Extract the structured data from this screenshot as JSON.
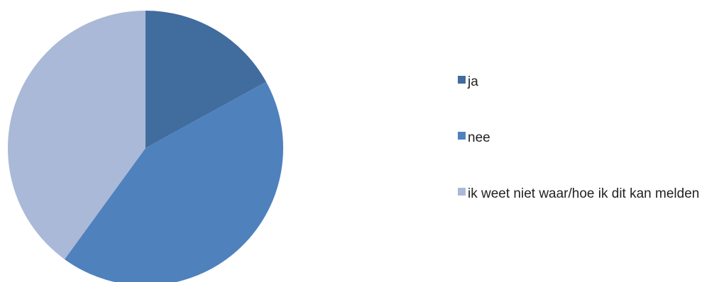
{
  "chart_data": {
    "type": "pie",
    "title": "",
    "start_angle_deg": 0,
    "direction": "clockwise",
    "legend_position": "right",
    "slices": [
      {
        "label": "ja",
        "value": 17,
        "color": "#416C9E"
      },
      {
        "label": "nee",
        "value": 43,
        "color": "#4F81BD"
      },
      {
        "label": "ik weet niet waar/hoe ik dit kan melden",
        "value": 40,
        "color": "#AAB9D7"
      }
    ]
  }
}
